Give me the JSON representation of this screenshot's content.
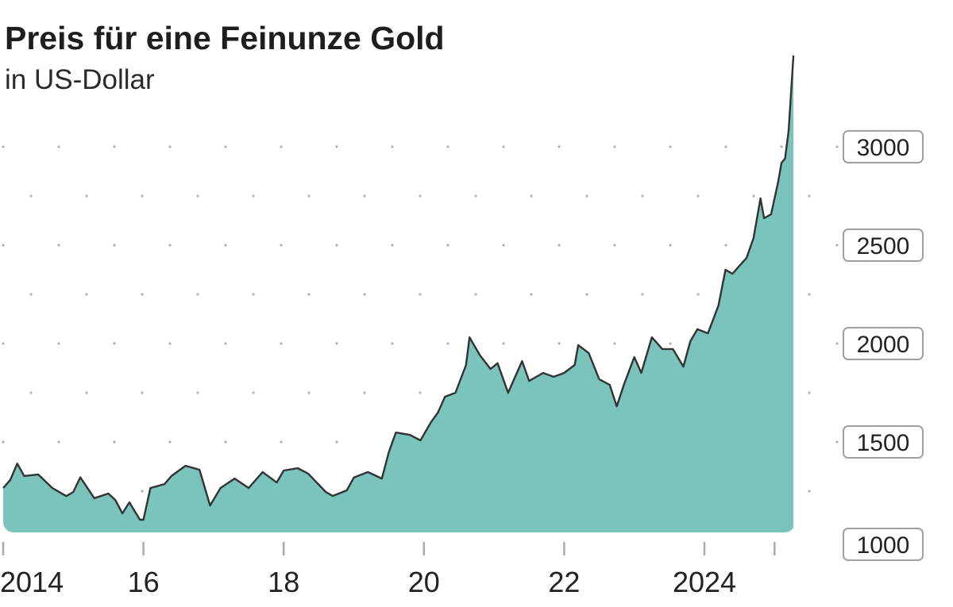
{
  "chart_data": {
    "type": "area",
    "title": "Preis für eine Feinunze Gold",
    "subtitle": "in US-Dollar",
    "xlabel": "",
    "ylabel": "",
    "xlim": [
      2014.0,
      2025.3
    ],
    "ylim": [
      1000,
      3500
    ],
    "y_ticks": [
      1000,
      1500,
      2000,
      2500,
      3000
    ],
    "y_tick_labels": [
      "1000",
      "1500",
      "2000",
      "2500",
      "3000"
    ],
    "x_ticks": [
      2014,
      2016,
      2018,
      2020,
      2022,
      2024,
      2025
    ],
    "x_tick_labels": [
      "2014",
      "16",
      "18",
      "20",
      "22",
      "2024",
      ""
    ],
    "grid": "dotted",
    "colors": {
      "fill": "#7bc4bb",
      "line": "#333333",
      "grid": "#b0b0b0",
      "label_border": "#a0a0a0"
    },
    "x": [
      2014.0,
      2014.1,
      2014.2,
      2014.3,
      2014.5,
      2014.7,
      2014.9,
      2015.0,
      2015.1,
      2015.3,
      2015.5,
      2015.6,
      2015.7,
      2015.8,
      2015.95,
      2016.0,
      2016.1,
      2016.3,
      2016.4,
      2016.6,
      2016.8,
      2016.95,
      2017.1,
      2017.3,
      2017.5,
      2017.7,
      2017.9,
      2018.0,
      2018.2,
      2018.35,
      2018.6,
      2018.7,
      2018.9,
      2019.0,
      2019.2,
      2019.4,
      2019.5,
      2019.6,
      2019.8,
      2019.95,
      2020.1,
      2020.2,
      2020.3,
      2020.45,
      2020.6,
      2020.65,
      2020.8,
      2020.95,
      2021.05,
      2021.2,
      2021.4,
      2021.5,
      2021.7,
      2021.85,
      2022.0,
      2022.15,
      2022.2,
      2022.35,
      2022.5,
      2022.65,
      2022.75,
      2022.85,
      2023.0,
      2023.1,
      2023.25,
      2023.4,
      2023.55,
      2023.7,
      2023.8,
      2023.9,
      2024.05,
      2024.2,
      2024.3,
      2024.4,
      2024.5,
      2024.6,
      2024.7,
      2024.8,
      2024.85,
      2024.95,
      2025.05,
      2025.1,
      2025.15,
      2025.2,
      2025.27
    ],
    "values": [
      1266,
      1306,
      1390,
      1327,
      1335,
      1266,
      1225,
      1246,
      1320,
      1214,
      1238,
      1205,
      1137,
      1193,
      1105,
      1105,
      1266,
      1286,
      1327,
      1379,
      1359,
      1177,
      1266,
      1314,
      1266,
      1347,
      1294,
      1355,
      1367,
      1339,
      1246,
      1226,
      1254,
      1319,
      1347,
      1314,
      1448,
      1548,
      1536,
      1508,
      1600,
      1650,
      1730,
      1750,
      1891,
      2032,
      1940,
      1871,
      1900,
      1750,
      1911,
      1810,
      1851,
      1831,
      1851,
      1891,
      1992,
      1952,
      1819,
      1790,
      1681,
      1790,
      1931,
      1851,
      2032,
      1972,
      1972,
      1883,
      2012,
      2073,
      2052,
      2194,
      2375,
      2355,
      2395,
      2435,
      2536,
      2738,
      2637,
      2657,
      2819,
      2919,
      2940,
      3081,
      3464
    ]
  }
}
